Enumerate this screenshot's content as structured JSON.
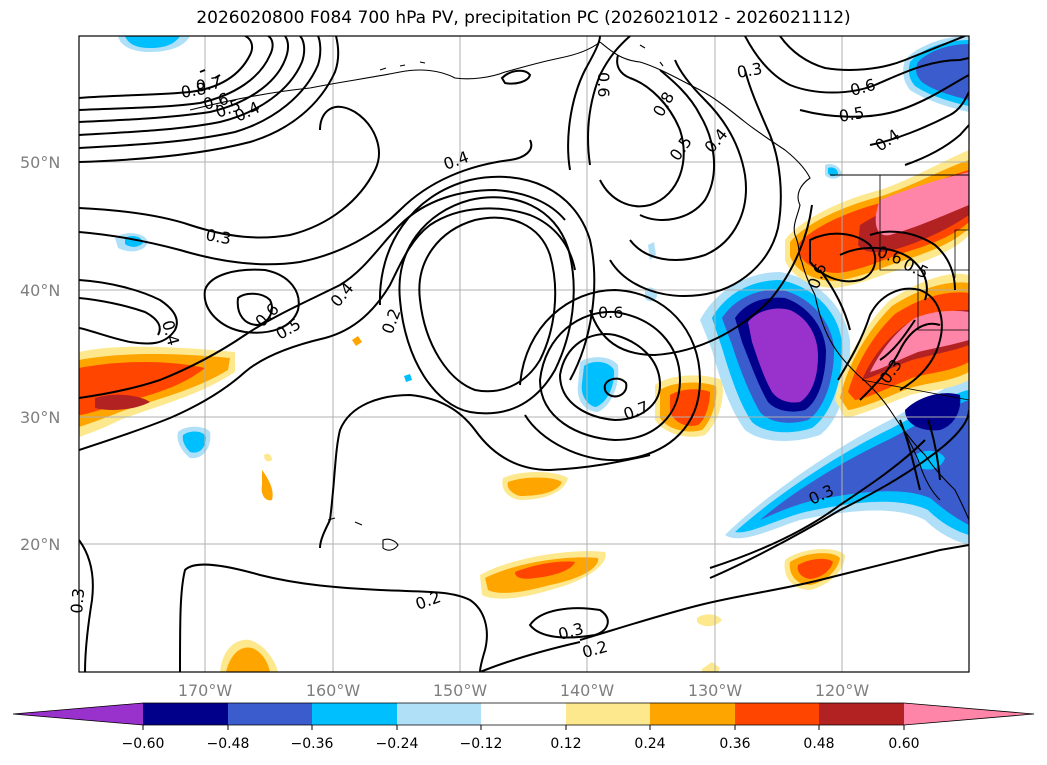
{
  "title": "2026020800 F084 700 hPa PV, precipitation PC (2026021012 - 2026021112)",
  "map": {
    "lat_labels": [
      "50°N",
      "40°N",
      "30°N",
      "20°N"
    ],
    "lon_labels": [
      "170°W",
      "160°W",
      "150°W",
      "140°W",
      "130°W",
      "120°W"
    ],
    "contour_labels": [
      "0.8",
      "0.7",
      "0.6",
      "0.5",
      "0.4",
      "0.4",
      "0.3",
      "0.4",
      "0.6",
      "0.5",
      "0.4",
      "0.2",
      "0.6",
      "0.7",
      "0.6",
      "0.8",
      "0.5",
      "0.4",
      "0.3",
      "0.6",
      "0.5",
      "0.4",
      "0.6",
      "0.5",
      "0.6",
      "0.3",
      "0.3",
      "0.3",
      "0.2",
      "0.2",
      "0.3"
    ],
    "colors": {
      "coast": "#000000",
      "grid": "#b0b0b0",
      "contour": "#000000"
    }
  },
  "colorbar": {
    "tick_labels": [
      "−0.60",
      "−0.48",
      "−0.36",
      "−0.24",
      "−0.12",
      "0.12",
      "0.24",
      "0.36",
      "0.48",
      "0.60"
    ],
    "colors": [
      "#9932cc",
      "#00008b",
      "#3a5ccc",
      "#00bfff",
      "#b0e0f8",
      "#ffffff",
      "#fde88d",
      "#ffa500",
      "#ff4500",
      "#b22222",
      "#ff85a8"
    ]
  }
}
